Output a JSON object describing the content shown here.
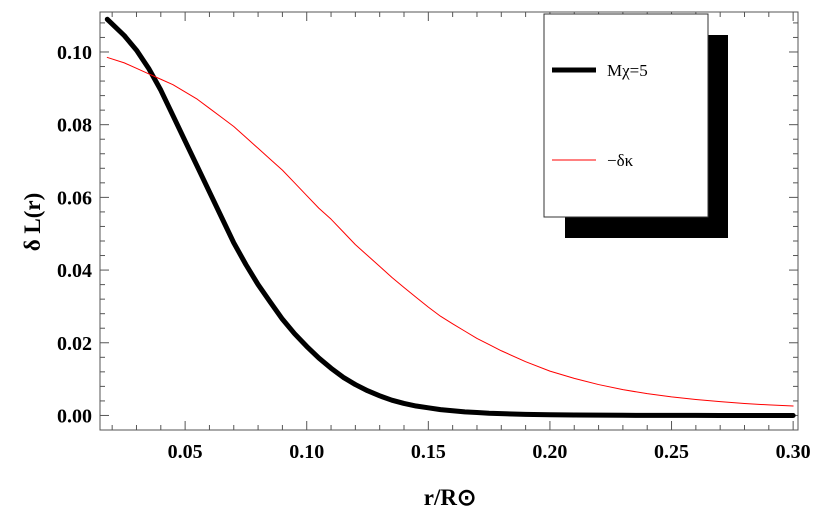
{
  "chart_data": {
    "type": "line",
    "xlabel": "r/R⊙",
    "ylabel": "δ L(r)",
    "xlim": [
      0.015,
      0.302
    ],
    "ylim": [
      -0.004,
      0.111
    ],
    "x_ticks": [
      "0.05",
      "0.10",
      "0.15",
      "0.20",
      "0.25",
      "0.30"
    ],
    "y_ticks": [
      "0.00",
      "0.02",
      "0.04",
      "0.06",
      "0.08",
      "0.10"
    ],
    "grid": false,
    "legend_position": "top-right",
    "series": [
      {
        "name": "Mχ=5",
        "color": "#000000",
        "x": [
          0.018,
          0.025,
          0.03,
          0.035,
          0.04,
          0.045,
          0.05,
          0.055,
          0.06,
          0.065,
          0.07,
          0.075,
          0.08,
          0.085,
          0.09,
          0.095,
          0.1,
          0.105,
          0.11,
          0.115,
          0.12,
          0.125,
          0.13,
          0.135,
          0.14,
          0.145,
          0.15,
          0.155,
          0.16,
          0.165,
          0.17,
          0.175,
          0.18,
          0.19,
          0.2,
          0.21,
          0.22,
          0.23,
          0.24,
          0.25,
          0.26,
          0.27,
          0.28,
          0.29,
          0.3
        ],
        "values": [
          0.109,
          0.1045,
          0.1005,
          0.0955,
          0.0895,
          0.0825,
          0.0755,
          0.0685,
          0.0615,
          0.0545,
          0.0475,
          0.0415,
          0.036,
          0.0312,
          0.0265,
          0.0225,
          0.019,
          0.0158,
          0.013,
          0.0105,
          0.0085,
          0.0068,
          0.0054,
          0.0042,
          0.0033,
          0.0026,
          0.0021,
          0.0016,
          0.0013,
          0.001,
          0.0008,
          0.0006,
          0.0005,
          0.0003,
          0.0002,
          0.00012,
          8e-05,
          5e-05,
          3e-05,
          2e-05,
          1e-05,
          0.0,
          0.0,
          0.0,
          0.0
        ]
      },
      {
        "name": "−δκ",
        "color": "#ff0000",
        "x": [
          0.018,
          0.025,
          0.03,
          0.035,
          0.04,
          0.045,
          0.05,
          0.055,
          0.06,
          0.065,
          0.07,
          0.075,
          0.08,
          0.085,
          0.09,
          0.095,
          0.1,
          0.105,
          0.11,
          0.115,
          0.12,
          0.125,
          0.13,
          0.135,
          0.14,
          0.145,
          0.15,
          0.155,
          0.16,
          0.165,
          0.17,
          0.175,
          0.18,
          0.19,
          0.2,
          0.21,
          0.22,
          0.23,
          0.24,
          0.25,
          0.26,
          0.27,
          0.28,
          0.29,
          0.3
        ],
        "values": [
          0.0985,
          0.097,
          0.0955,
          0.094,
          0.0925,
          0.091,
          0.089,
          0.087,
          0.0845,
          0.082,
          0.0795,
          0.0765,
          0.0735,
          0.0705,
          0.0675,
          0.064,
          0.0605,
          0.057,
          0.054,
          0.0505,
          0.047,
          0.044,
          0.041,
          0.038,
          0.0352,
          0.0325,
          0.0298,
          0.0273,
          0.0252,
          0.0232,
          0.0212,
          0.0195,
          0.0178,
          0.0148,
          0.0122,
          0.0102,
          0.0085,
          0.0071,
          0.006,
          0.0051,
          0.0044,
          0.0038,
          0.0033,
          0.0029,
          0.0026
        ]
      }
    ]
  }
}
